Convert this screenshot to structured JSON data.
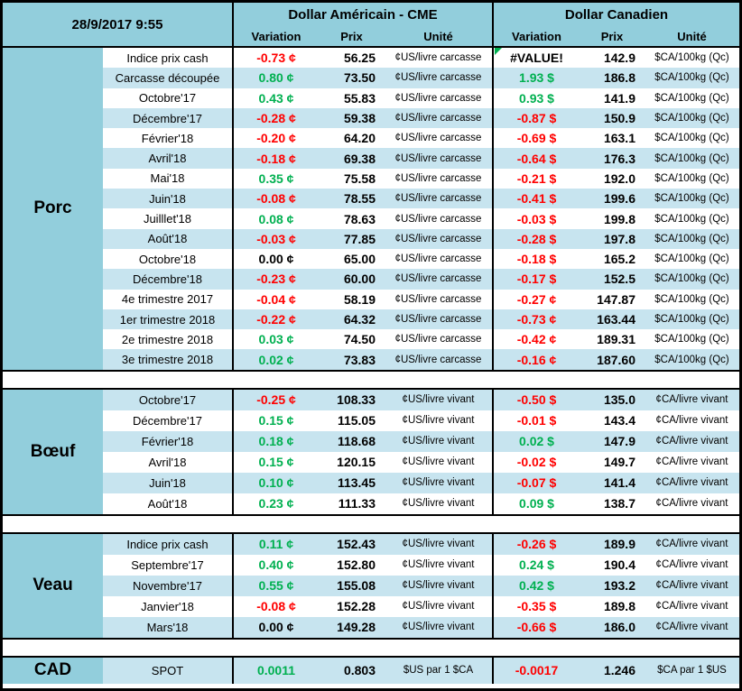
{
  "colors": {
    "header_bg": "#92CEDC",
    "row_alt_bg": "#C7E4EF",
    "row_bg": "#FFFFFF",
    "border": "#000000",
    "positive_green": "#00B050",
    "negative_red": "#FF0000",
    "error_indicator_green": "#00B050"
  },
  "header": {
    "timestamp": "28/9/2017 9:55",
    "group_us": "Dollar Américain - CME",
    "group_ca": "Dollar Canadien",
    "col_variation": "Variation",
    "col_prix": "Prix",
    "col_unite": "Unité"
  },
  "sections": [
    {
      "label": "Porc",
      "unit_us": "¢US/livre carcasse",
      "unit_ca": "$CA/100kg (Qc)",
      "rows": [
        {
          "label": "Indice prix cash",
          "var_us": "-0.73 ¢",
          "tone_us": "neg",
          "prix_us": "56.25",
          "var_ca": "#VALUE!",
          "tone_ca": "err",
          "prix_ca": "142.9"
        },
        {
          "label": "Carcasse découpée",
          "var_us": "0.80 ¢",
          "tone_us": "pos",
          "prix_us": "73.50",
          "var_ca": "1.93 $",
          "tone_ca": "pos",
          "prix_ca": "186.8"
        },
        {
          "label": "Octobre'17",
          "var_us": "0.43 ¢",
          "tone_us": "pos",
          "prix_us": "55.83",
          "var_ca": "0.93 $",
          "tone_ca": "pos",
          "prix_ca": "141.9"
        },
        {
          "label": "Décembre'17",
          "var_us": "-0.28 ¢",
          "tone_us": "neg",
          "prix_us": "59.38",
          "var_ca": "-0.87 $",
          "tone_ca": "neg",
          "prix_ca": "150.9"
        },
        {
          "label": "Février'18",
          "var_us": "-0.20 ¢",
          "tone_us": "neg",
          "prix_us": "64.20",
          "var_ca": "-0.69 $",
          "tone_ca": "neg",
          "prix_ca": "163.1"
        },
        {
          "label": "Avril'18",
          "var_us": "-0.18 ¢",
          "tone_us": "neg",
          "prix_us": "69.38",
          "var_ca": "-0.64 $",
          "tone_ca": "neg",
          "prix_ca": "176.3"
        },
        {
          "label": "Mai'18",
          "var_us": "0.35 ¢",
          "tone_us": "pos",
          "prix_us": "75.58",
          "var_ca": "-0.21 $",
          "tone_ca": "neg",
          "prix_ca": "192.0"
        },
        {
          "label": "Juin'18",
          "var_us": "-0.08 ¢",
          "tone_us": "neg",
          "prix_us": "78.55",
          "var_ca": "-0.41 $",
          "tone_ca": "neg",
          "prix_ca": "199.6"
        },
        {
          "label": "Juilllet'18",
          "var_us": "0.08 ¢",
          "tone_us": "pos",
          "prix_us": "78.63",
          "var_ca": "-0.03 $",
          "tone_ca": "neg",
          "prix_ca": "199.8"
        },
        {
          "label": "Août'18",
          "var_us": "-0.03 ¢",
          "tone_us": "neg",
          "prix_us": "77.85",
          "var_ca": "-0.28 $",
          "tone_ca": "neg",
          "prix_ca": "197.8"
        },
        {
          "label": "Octobre'18",
          "var_us": "0.00 ¢",
          "tone_us": "zero",
          "prix_us": "65.00",
          "var_ca": "-0.18 $",
          "tone_ca": "neg",
          "prix_ca": "165.2"
        },
        {
          "label": "Décembre'18",
          "var_us": "-0.23 ¢",
          "tone_us": "neg",
          "prix_us": "60.00",
          "var_ca": "-0.17 $",
          "tone_ca": "neg",
          "prix_ca": "152.5"
        },
        {
          "label": "4e trimestre 2017",
          "var_us": "-0.04 ¢",
          "tone_us": "neg",
          "prix_us": "58.19",
          "var_ca": "-0.27 ¢",
          "tone_ca": "neg",
          "prix_ca": "147.87"
        },
        {
          "label": "1er trimestre 2018",
          "var_us": "-0.22 ¢",
          "tone_us": "neg",
          "prix_us": "64.32",
          "var_ca": "-0.73 ¢",
          "tone_ca": "neg",
          "prix_ca": "163.44"
        },
        {
          "label": "2e trimestre 2018",
          "var_us": "0.03 ¢",
          "tone_us": "pos",
          "prix_us": "74.50",
          "var_ca": "-0.42 ¢",
          "tone_ca": "neg",
          "prix_ca": "189.31"
        },
        {
          "label": "3e trimestre 2018",
          "var_us": "0.02 ¢",
          "tone_us": "pos",
          "prix_us": "73.83",
          "var_ca": "-0.16 ¢",
          "tone_ca": "neg",
          "prix_ca": "187.60"
        }
      ]
    },
    {
      "label": "Bœuf",
      "unit_us": "¢US/livre vivant",
      "unit_ca": "¢CA/livre vivant",
      "rows": [
        {
          "label": "Octobre'17",
          "var_us": "-0.25 ¢",
          "tone_us": "neg",
          "prix_us": "108.33",
          "var_ca": "-0.50 $",
          "tone_ca": "neg",
          "prix_ca": "135.0"
        },
        {
          "label": "Décembre'17",
          "var_us": "0.15 ¢",
          "tone_us": "pos",
          "prix_us": "115.05",
          "var_ca": "-0.01 $",
          "tone_ca": "neg",
          "prix_ca": "143.4"
        },
        {
          "label": "Février'18",
          "var_us": "0.18 ¢",
          "tone_us": "pos",
          "prix_us": "118.68",
          "var_ca": "0.02 $",
          "tone_ca": "pos",
          "prix_ca": "147.9"
        },
        {
          "label": "Avril'18",
          "var_us": "0.15 ¢",
          "tone_us": "pos",
          "prix_us": "120.15",
          "var_ca": "-0.02 $",
          "tone_ca": "neg",
          "prix_ca": "149.7"
        },
        {
          "label": "Juin'18",
          "var_us": "0.10 ¢",
          "tone_us": "pos",
          "prix_us": "113.45",
          "var_ca": "-0.07 $",
          "tone_ca": "neg",
          "prix_ca": "141.4"
        },
        {
          "label": "Août'18",
          "var_us": "0.23 ¢",
          "tone_us": "pos",
          "prix_us": "111.33",
          "var_ca": "0.09 $",
          "tone_ca": "pos",
          "prix_ca": "138.7"
        }
      ]
    },
    {
      "label": "Veau",
      "unit_us": "¢US/livre vivant",
      "unit_ca": "¢CA/livre vivant",
      "rows": [
        {
          "label": "Indice prix cash",
          "var_us": "0.11 ¢",
          "tone_us": "pos",
          "prix_us": "152.43",
          "var_ca": "-0.26 $",
          "tone_ca": "neg",
          "prix_ca": "189.9"
        },
        {
          "label": "Septembre'17",
          "var_us": "0.40 ¢",
          "tone_us": "pos",
          "prix_us": "152.80",
          "var_ca": "0.24 $",
          "tone_ca": "pos",
          "prix_ca": "190.4"
        },
        {
          "label": "Novembre'17",
          "var_us": "0.55 ¢",
          "tone_us": "pos",
          "prix_us": "155.08",
          "var_ca": "0.42 $",
          "tone_ca": "pos",
          "prix_ca": "193.2"
        },
        {
          "label": "Janvier'18",
          "var_us": "-0.08 ¢",
          "tone_us": "neg",
          "prix_us": "152.28",
          "var_ca": "-0.35 $",
          "tone_ca": "neg",
          "prix_ca": "189.8"
        },
        {
          "label": "Mars'18",
          "var_us": "0.00 ¢",
          "tone_us": "zero",
          "prix_us": "149.28",
          "var_ca": "-0.66 $",
          "tone_ca": "neg",
          "prix_ca": "186.0"
        }
      ]
    },
    {
      "label": "CAD",
      "unit_us": "$US par 1 $CA",
      "unit_ca": "$CA par 1 $US",
      "rows": [
        {
          "label": "SPOT",
          "var_us": "0.0011",
          "tone_us": "pos",
          "prix_us": "0.803",
          "var_ca": "-0.0017",
          "tone_ca": "neg",
          "prix_ca": "1.246"
        }
      ]
    }
  ]
}
